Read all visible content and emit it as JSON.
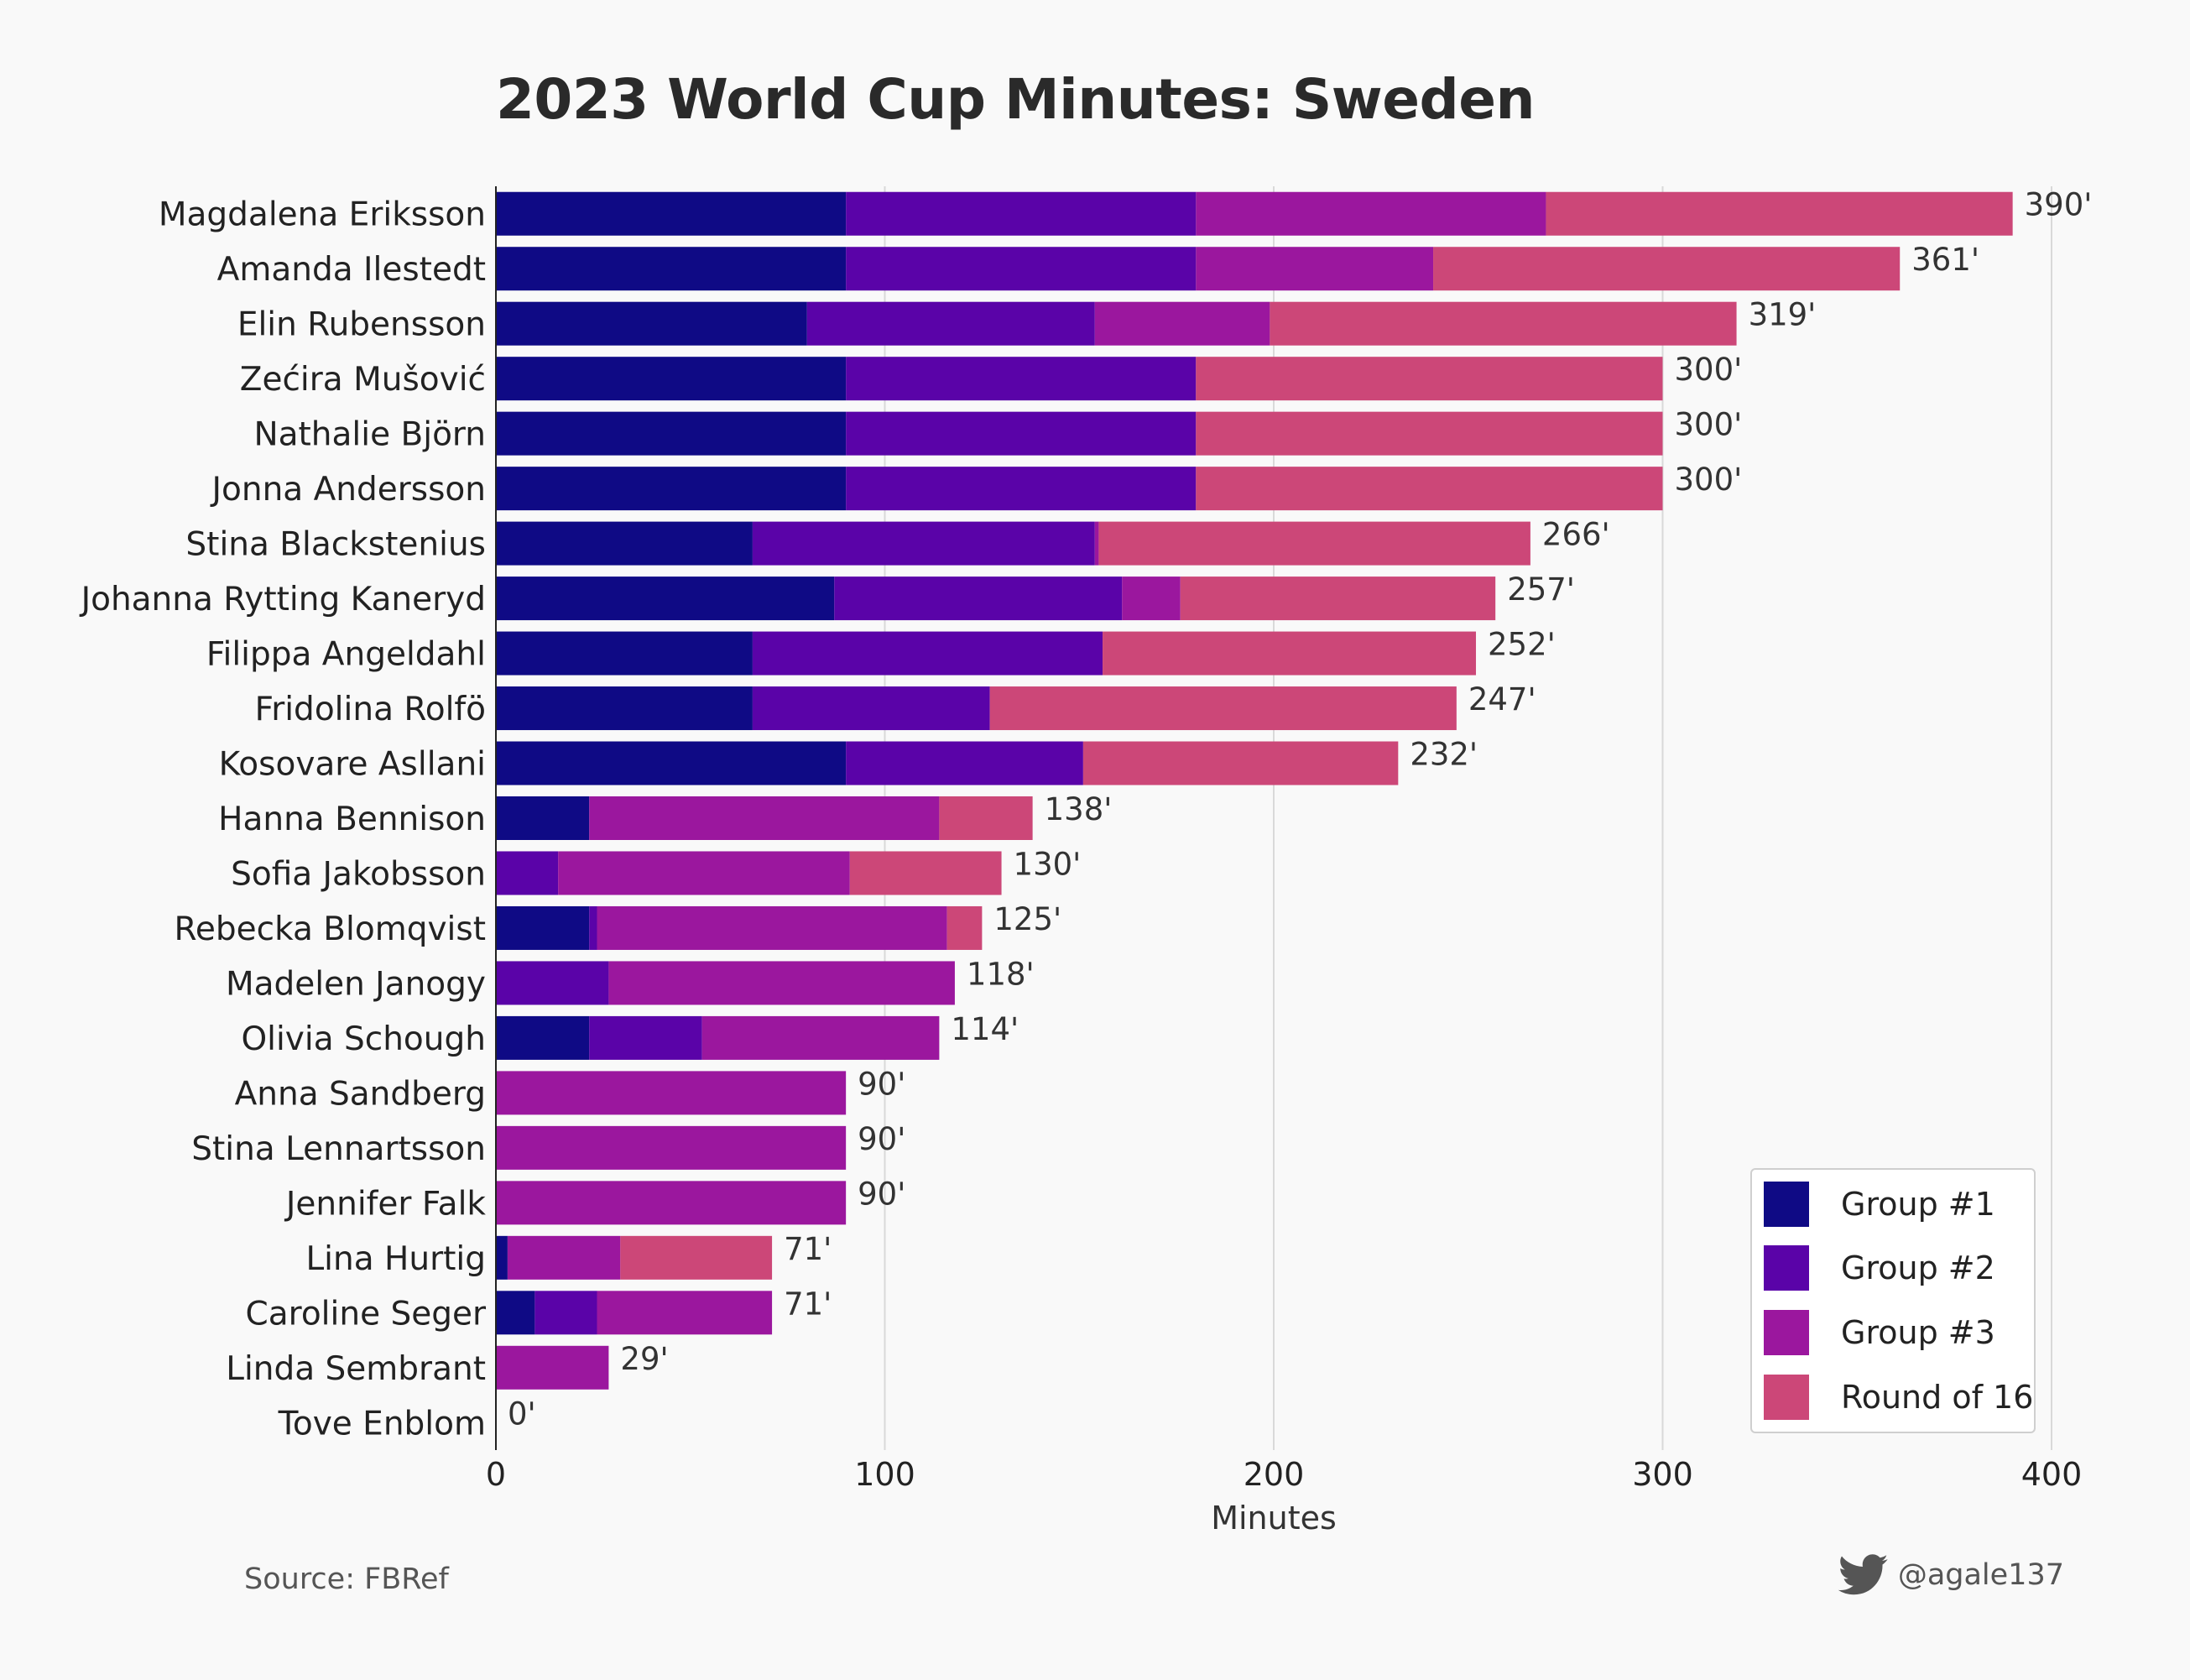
{
  "title": "2023 World Cup Minutes: Sweden",
  "source": "Source: FBRef",
  "handle": "@agale137",
  "icons": {
    "handle_icon": "twitter-bird-icon"
  },
  "colors": {
    "group1": "#0f0a85",
    "group2": "#5a03a8",
    "group3": "#9b179e",
    "round16": "#cc4778"
  },
  "chart_data": {
    "type": "bar",
    "orientation": "horizontal",
    "stacked": true,
    "xlabel": "Minutes",
    "xlim": [
      0,
      400
    ],
    "xticks": [
      0,
      100,
      200,
      300,
      400
    ],
    "grid": true,
    "legend_position": "bottom-right",
    "value_suffix": "'",
    "categories": [
      "Magdalena Eriksson",
      "Amanda Ilestedt",
      "Elin Rubensson",
      "Zećira Mušović",
      "Nathalie Björn",
      "Jonna Andersson",
      "Stina Blackstenius",
      "Johanna Rytting Kaneryd",
      "Filippa Angeldahl",
      "Fridolina Rolfö",
      "Kosovare Asllani",
      "Hanna Bennison",
      "Sofia Jakobsson",
      "Rebecka Blomqvist",
      "Madelen Janogy",
      "Olivia Schough",
      "Anna Sandberg",
      "Stina Lennartsson",
      "Jennifer Falk",
      "Lina Hurtig",
      "Caroline Seger",
      "Linda Sembrant",
      "Tove Enblom"
    ],
    "totals": [
      390,
      361,
      319,
      300,
      300,
      300,
      266,
      257,
      252,
      247,
      232,
      138,
      130,
      125,
      118,
      114,
      90,
      90,
      90,
      71,
      71,
      29,
      0
    ],
    "series": [
      {
        "name": "Group #1",
        "values": [
          90,
          90,
          80,
          90,
          90,
          90,
          66,
          87,
          66,
          66,
          90,
          24,
          0,
          24,
          0,
          24,
          0,
          0,
          0,
          3,
          10,
          0,
          0
        ]
      },
      {
        "name": "Group #2",
        "values": [
          90,
          90,
          74,
          90,
          90,
          90,
          88,
          74,
          90,
          61,
          61,
          0,
          16,
          2,
          29,
          29,
          0,
          0,
          0,
          0,
          16,
          0,
          0
        ]
      },
      {
        "name": "Group #3",
        "values": [
          90,
          61,
          45,
          0,
          0,
          0,
          1,
          15,
          0,
          0,
          0,
          90,
          75,
          90,
          89,
          61,
          90,
          90,
          90,
          29,
          45,
          29,
          0
        ]
      },
      {
        "name": "Round of 16",
        "values": [
          120,
          120,
          120,
          120,
          120,
          120,
          111,
          81,
          96,
          120,
          81,
          24,
          39,
          9,
          0,
          0,
          0,
          0,
          0,
          39,
          0,
          0,
          0
        ]
      }
    ]
  }
}
